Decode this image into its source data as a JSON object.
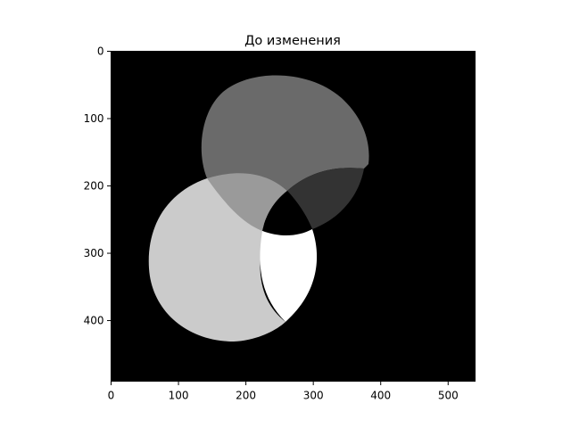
{
  "figure": {
    "title": "До изменения"
  },
  "image_content": {
    "description_kind": "grayscale-image",
    "background_color": "#000000",
    "colors": {
      "top_circle": "#6a6a6a",
      "left_circle": "#cbcbcb",
      "top_left_overlap": "#9a9a9a",
      "top_right_overlap": "#333333",
      "center_hole": "#000000",
      "right_lens": "#ffffff"
    }
  },
  "axes": {
    "x": {
      "ticks": [
        0,
        100,
        200,
        300,
        400,
        500
      ],
      "tick_labels": [
        "0",
        "100",
        "200",
        "300",
        "400",
        "500"
      ],
      "range": [
        0,
        540
      ]
    },
    "y": {
      "ticks": [
        0,
        100,
        200,
        300,
        400
      ],
      "tick_labels": [
        "0",
        "100",
        "200",
        "300",
        "400"
      ],
      "range": [
        0,
        490
      ],
      "inverted": true
    }
  }
}
